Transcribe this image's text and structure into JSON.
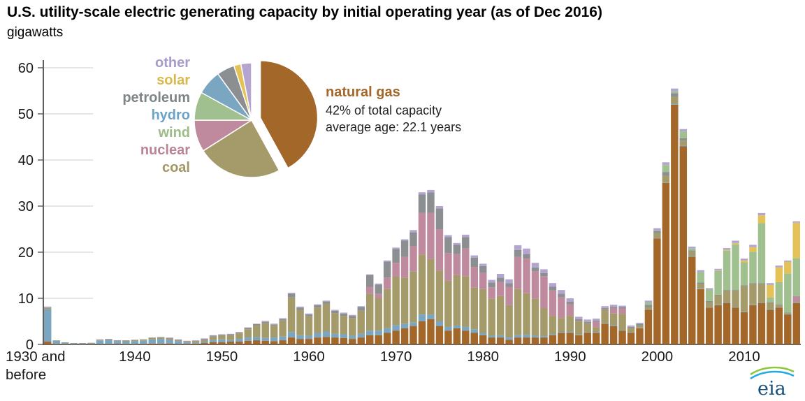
{
  "title": "U.S. utility-scale electric generating capacity by initial operating year (as of Dec 2016)",
  "units_label": "gigawatts",
  "logo": {
    "text": "eia"
  },
  "chart_data": {
    "type": "bar",
    "stacked": true,
    "grid": "left-stub-gridlines",
    "x_axis": {
      "first_bar_label": "1930 and before",
      "start_year": 1931,
      "end_year": 2016,
      "tick_labels": [
        "1940",
        "1950",
        "1960",
        "1970",
        "1980",
        "1990",
        "2000",
        "2010"
      ]
    },
    "y_axis": {
      "label": "gigawatts",
      "ticks": [
        0,
        10,
        20,
        30,
        40,
        50,
        60
      ],
      "max": 60
    },
    "series": [
      {
        "name": "natural gas",
        "color": "#a3672a",
        "values": [
          0.6,
          0.1,
          0.1,
          0.05,
          0.05,
          0.1,
          0.1,
          0.1,
          0.1,
          0.1,
          0.1,
          0.1,
          0.2,
          0.2,
          0.2,
          0.1,
          0.1,
          0.2,
          0.3,
          0.5,
          0.5,
          0.6,
          0.6,
          0.8,
          0.9,
          0.8,
          0.7,
          0.9,
          1.5,
          1.2,
          1.2,
          1.5,
          1.6,
          1.5,
          1.4,
          1.2,
          1.5,
          2.0,
          2.0,
          2.5,
          3.0,
          3.5,
          4.0,
          5.0,
          5.5,
          4.0,
          3.0,
          3.5,
          3.0,
          2.5,
          2.0,
          1.5,
          1.5,
          1.0,
          1.5,
          1.5,
          1.5,
          1.5,
          2.0,
          2.5,
          2.5,
          2.0,
          2.5,
          2.5,
          4.5,
          4.0,
          3.0,
          2.5,
          3.5,
          7.5,
          23.0,
          35.0,
          52.0,
          43.0,
          19.0,
          12.0,
          8.0,
          8.5,
          9.0,
          8.0,
          7.0,
          8.5,
          9.0,
          7.5,
          8.0,
          6.5,
          9.0
        ]
      },
      {
        "name": "hydro",
        "color": "#7aa6c2",
        "values": [
          7.0,
          0.7,
          0.3,
          0.2,
          0.2,
          0.2,
          0.7,
          0.9,
          0.6,
          0.5,
          0.6,
          0.7,
          0.9,
          1.0,
          0.8,
          0.6,
          0.3,
          0.2,
          0.3,
          0.5,
          0.6,
          0.4,
          0.6,
          0.7,
          0.7,
          0.6,
          0.8,
          0.8,
          1.2,
          0.8,
          0.7,
          1.0,
          1.2,
          0.8,
          0.8,
          0.7,
          0.8,
          1.0,
          1.0,
          1.0,
          1.2,
          1.0,
          0.8,
          1.5,
          1.0,
          1.0,
          0.8,
          0.6,
          0.8,
          0.8,
          0.5,
          0.4,
          0.5,
          0.5,
          0.5,
          0.6,
          0.4,
          0.3,
          0.2,
          0.2,
          0.2,
          0.1,
          0.1,
          0.2,
          0.1,
          0.2,
          0.1,
          0.1,
          0.1,
          0.1,
          0.1,
          0.1,
          0.2,
          0.2,
          0.1,
          0.1,
          0.1,
          0.1,
          0.1,
          0.1,
          0.1,
          0.1,
          0.1,
          0.1,
          0.1,
          0.1,
          0.1
        ]
      },
      {
        "name": "coal",
        "color": "#a59a69",
        "values": [
          0.3,
          0.1,
          0.05,
          0.05,
          0.05,
          0.05,
          0.1,
          0.1,
          0.1,
          0.2,
          0.2,
          0.2,
          0.3,
          0.3,
          0.3,
          0.2,
          0.2,
          0.3,
          0.4,
          0.7,
          0.8,
          1.0,
          1.2,
          1.8,
          2.5,
          3.2,
          2.6,
          3.5,
          7.5,
          5.5,
          4.2,
          5.5,
          6.0,
          4.5,
          4.0,
          3.8,
          5.0,
          8.0,
          7.0,
          8.5,
          10.5,
          10.0,
          11.0,
          13.0,
          12.0,
          11.0,
          10.0,
          11.0,
          11.0,
          9.0,
          9.5,
          8.0,
          8.5,
          7.0,
          10.0,
          9.0,
          8.0,
          6.0,
          4.0,
          3.0,
          3.5,
          3.0,
          2.0,
          1.0,
          3.0,
          2.5,
          3.5,
          1.0,
          0.5,
          0.5,
          1.0,
          1.5,
          1.5,
          1.0,
          1.0,
          1.0,
          1.0,
          2.0,
          2.5,
          3.5,
          5.5,
          4.5,
          4.0,
          1.5,
          0.5,
          0.2,
          0.1
        ]
      },
      {
        "name": "nuclear",
        "color": "#bf8a9e",
        "values": [
          0,
          0,
          0,
          0,
          0,
          0,
          0,
          0,
          0,
          0,
          0,
          0,
          0,
          0,
          0,
          0,
          0,
          0,
          0,
          0,
          0,
          0,
          0,
          0,
          0,
          0,
          0,
          0,
          0,
          0,
          0,
          0,
          0,
          0,
          0,
          0,
          0,
          1.5,
          1.0,
          2.5,
          3.0,
          4.5,
          5.5,
          9.0,
          10.0,
          9.0,
          6.0,
          4.5,
          6.0,
          4.5,
          3.5,
          2.5,
          3.0,
          4.0,
          7.0,
          7.5,
          6.0,
          7.0,
          5.5,
          4.5,
          2.5,
          0,
          0,
          1.2,
          0,
          1.2,
          1.2,
          0,
          0,
          0,
          0,
          0,
          0,
          0,
          0,
          0,
          0,
          0,
          0,
          0,
          0,
          0,
          0,
          0,
          0,
          0,
          1.2
        ]
      },
      {
        "name": "petroleum",
        "color": "#8c8f91",
        "values": [
          0.1,
          0,
          0,
          0,
          0,
          0,
          0.1,
          0.1,
          0.1,
          0.1,
          0.1,
          0.1,
          0.1,
          0.1,
          0.1,
          0.1,
          0.1,
          0.1,
          0.2,
          0.2,
          0.2,
          0.2,
          0.2,
          0.3,
          0.3,
          0.3,
          0.2,
          0.3,
          0.8,
          0.5,
          0.4,
          0.5,
          0.5,
          0.5,
          0.5,
          0.5,
          0.8,
          2.5,
          2.0,
          3.5,
          3.0,
          3.5,
          3.0,
          4.0,
          4.5,
          4.5,
          3.5,
          2.0,
          2.5,
          2.0,
          1.5,
          1.0,
          1.0,
          0.8,
          1.5,
          1.0,
          0.8,
          0.7,
          0.8,
          0.8,
          0.6,
          0.4,
          0.3,
          0.3,
          0.3,
          0.3,
          0.3,
          0.2,
          0.3,
          0.5,
          0.5,
          0.8,
          0.8,
          0.5,
          0.3,
          0.3,
          0.3,
          0.2,
          0.2,
          0.2,
          0.2,
          0.2,
          0.2,
          0.1,
          0.1,
          0.1,
          0.1
        ]
      },
      {
        "name": "wind",
        "color": "#a0c08f",
        "values": [
          0,
          0,
          0,
          0,
          0,
          0,
          0,
          0,
          0,
          0,
          0,
          0,
          0,
          0,
          0,
          0,
          0,
          0,
          0,
          0,
          0,
          0,
          0,
          0,
          0,
          0,
          0,
          0,
          0,
          0,
          0,
          0,
          0,
          0,
          0,
          0,
          0,
          0,
          0,
          0,
          0,
          0,
          0,
          0,
          0,
          0,
          0,
          0,
          0,
          0,
          0,
          0,
          0,
          0,
          0,
          0,
          0,
          0,
          0,
          0,
          0,
          0,
          0,
          0,
          0,
          0,
          0,
          0,
          0,
          0.5,
          0.1,
          1.5,
          0.4,
          1.5,
          0.4,
          2.3,
          2.5,
          5.2,
          8.5,
          9.9,
          5.0,
          6.8,
          13.0,
          1.0,
          4.8,
          8.5,
          8.2
        ]
      },
      {
        "name": "solar",
        "color": "#e4c257",
        "values": [
          0,
          0,
          0,
          0,
          0,
          0,
          0,
          0,
          0,
          0,
          0,
          0,
          0,
          0,
          0,
          0,
          0,
          0,
          0,
          0,
          0,
          0,
          0,
          0,
          0,
          0,
          0,
          0,
          0,
          0,
          0,
          0,
          0,
          0,
          0,
          0,
          0,
          0,
          0,
          0,
          0,
          0,
          0,
          0,
          0,
          0,
          0,
          0,
          0,
          0,
          0,
          0,
          0,
          0,
          0,
          0,
          0,
          0,
          0,
          0,
          0,
          0,
          0,
          0,
          0,
          0,
          0,
          0,
          0,
          0,
          0,
          0,
          0,
          0,
          0,
          0,
          0,
          0.1,
          0.2,
          0.3,
          0.4,
          1.0,
          1.7,
          2.7,
          3.2,
          2.5,
          7.7
        ]
      },
      {
        "name": "other",
        "color": "#b3a5d0",
        "values": [
          0.2,
          0,
          0,
          0,
          0,
          0,
          0.1,
          0,
          0,
          0,
          0,
          0,
          0,
          0,
          0.1,
          0.1,
          0.1,
          0.1,
          0.1,
          0.1,
          0.1,
          0.1,
          0.1,
          0.1,
          0.1,
          0.2,
          0.2,
          0.2,
          0.2,
          0.2,
          0.2,
          0.2,
          0.2,
          0.2,
          0.2,
          0.2,
          0.2,
          0.2,
          0.2,
          0.2,
          0.3,
          0.3,
          0.5,
          0.5,
          0.5,
          0.5,
          0.4,
          0.4,
          0.5,
          0.5,
          0.5,
          0.6,
          0.8,
          0.8,
          1.0,
          1.2,
          1.0,
          0.8,
          0.8,
          0.8,
          0.7,
          0.5,
          0.5,
          0.4,
          0.4,
          0.4,
          0.3,
          0.3,
          0.3,
          0.4,
          0.5,
          0.6,
          0.6,
          0.5,
          0.4,
          0.4,
          0.3,
          0.3,
          0.4,
          0.5,
          0.4,
          0.5,
          0.5,
          0.4,
          0.4,
          0.3,
          0.3
        ]
      }
    ],
    "pie": {
      "inset": true,
      "slices": [
        {
          "label": "natural gas",
          "percent": 42,
          "color": "#a3672a",
          "exploded": true
        },
        {
          "label": "coal",
          "percent": 24,
          "color": "#a59a69"
        },
        {
          "label": "nuclear",
          "percent": 9,
          "color": "#bf8a9e"
        },
        {
          "label": "wind",
          "percent": 8,
          "color": "#a0c08f"
        },
        {
          "label": "hydro",
          "percent": 7,
          "color": "#7aa6c2"
        },
        {
          "label": "petroleum",
          "percent": 5,
          "color": "#8c8f91"
        },
        {
          "label": "solar",
          "percent": 2,
          "color": "#e4c257"
        },
        {
          "label": "other",
          "percent": 3,
          "color": "#b3a5d0"
        }
      ]
    },
    "legend": [
      {
        "label": "other",
        "color": "#a99bc9"
      },
      {
        "label": "solar",
        "color": "#d9b94c"
      },
      {
        "label": "petroleum",
        "color": "#7f8486"
      },
      {
        "label": "hydro",
        "color": "#6ba3c9"
      },
      {
        "label": "wind",
        "color": "#9cbd88"
      },
      {
        "label": "nuclear",
        "color": "#bb8397"
      },
      {
        "label": "coal",
        "color": "#a39764"
      }
    ],
    "annotation": {
      "fuel": "natural gas",
      "line1": "42% of total capacity",
      "line2": "average age:  22.1 years",
      "color": "#a3672a"
    }
  }
}
